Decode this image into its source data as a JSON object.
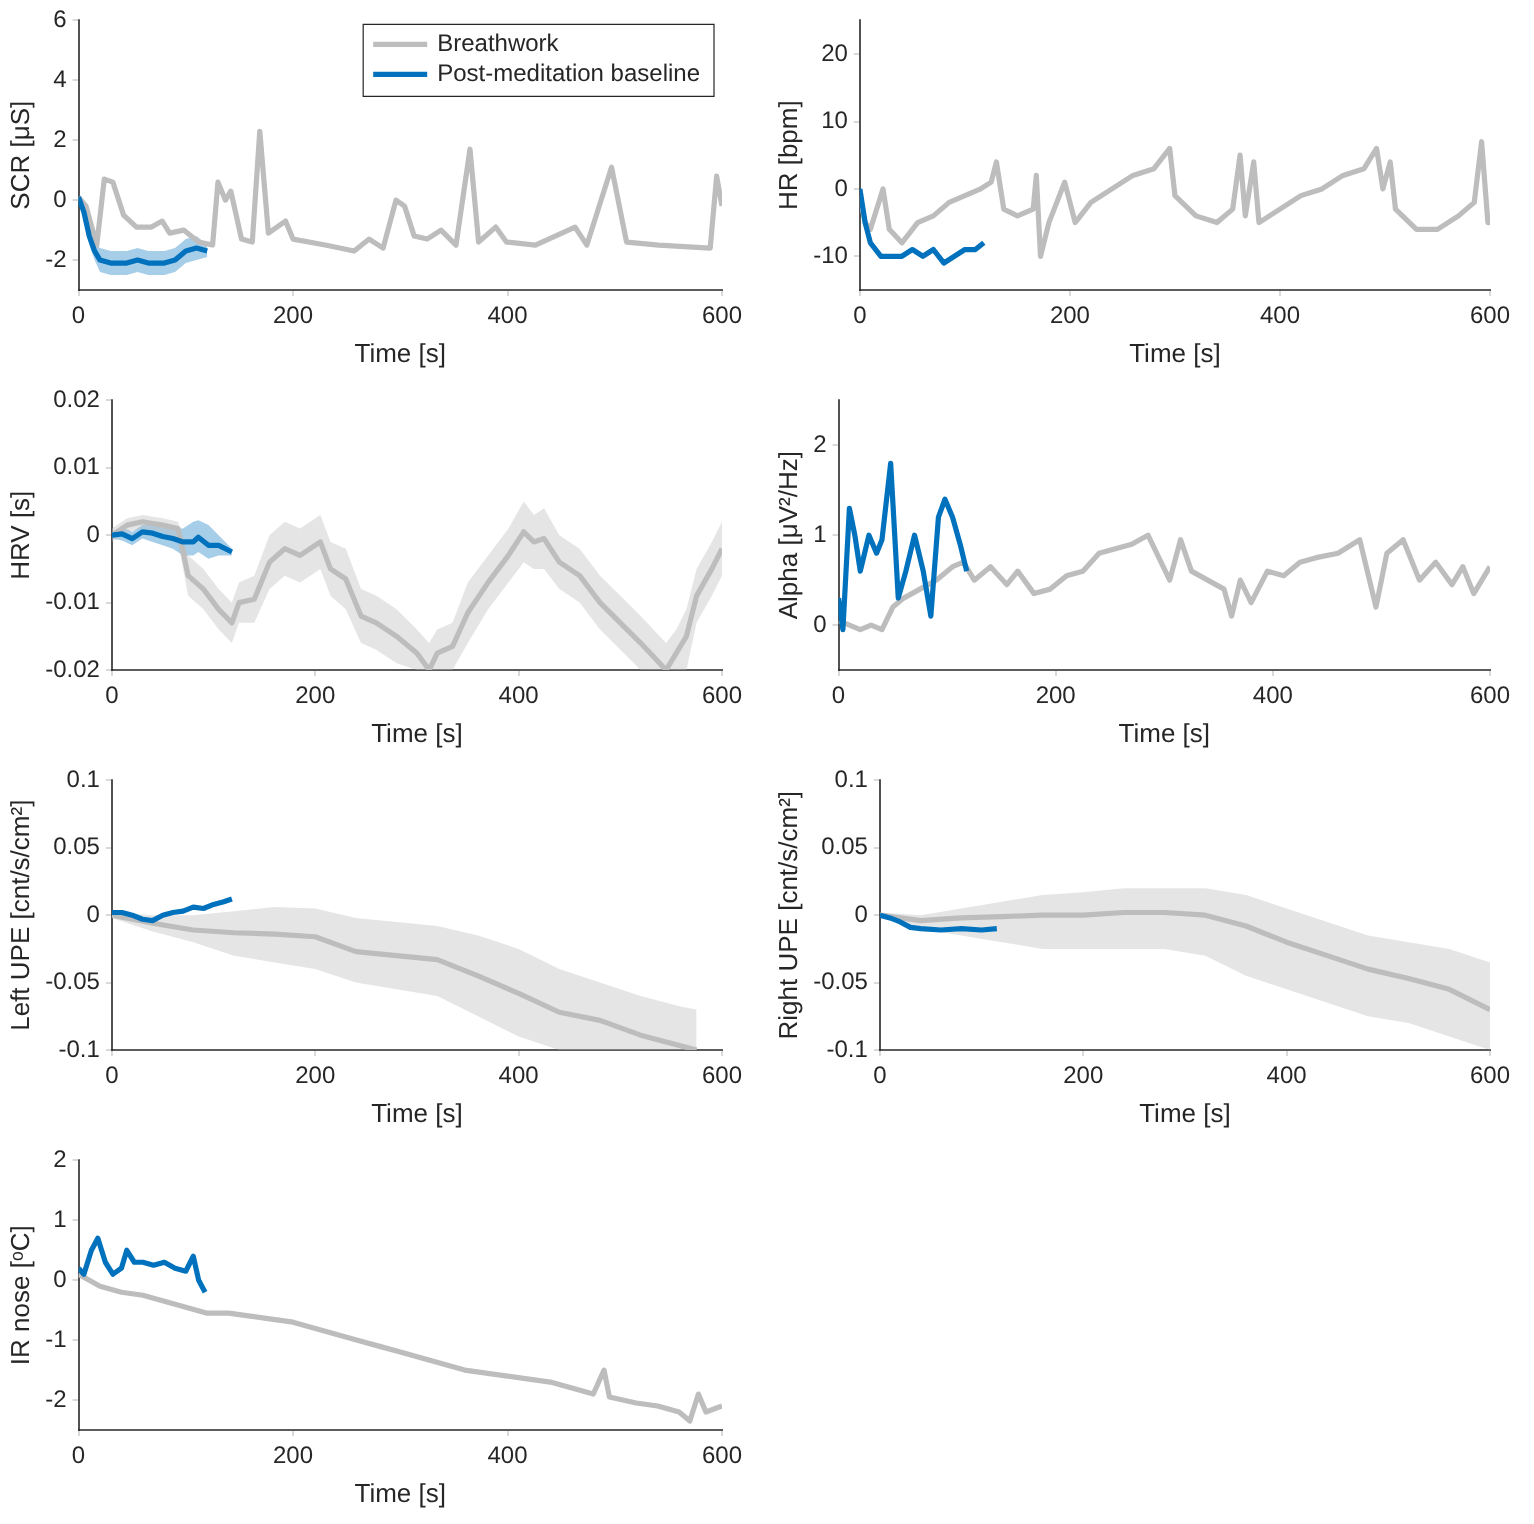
{
  "chart_data": [
    {
      "type": "line",
      "ylabel": "SCR [μS]",
      "xlabel": "Time [s]",
      "xlim": [
        0,
        600
      ],
      "xticks": [
        0,
        200,
        400,
        600
      ],
      "ylim": [
        -3,
        6
      ],
      "yticks": [
        -2,
        0,
        2,
        4,
        6
      ],
      "grid": false,
      "legend": "top right",
      "series": [
        {
          "name": "Breathwork",
          "color": "#bdbdbd",
          "x": [
            0,
            7,
            17,
            24,
            32,
            42,
            54,
            68,
            78,
            85,
            98,
            112,
            125,
            130,
            137,
            142,
            152,
            162,
            169,
            177,
            193,
            200,
            230,
            257,
            271,
            284,
            296,
            304,
            313,
            325,
            338,
            352,
            365,
            373,
            389,
            399,
            426,
            463,
            474,
            497,
            511,
            541,
            589,
            595,
            600
          ],
          "values": [
            0.1,
            -0.2,
            -1.5,
            0.7,
            0.6,
            -0.5,
            -0.9,
            -0.9,
            -0.7,
            -1.1,
            -1.0,
            -1.4,
            -1.5,
            0.6,
            0.0,
            0.3,
            -1.3,
            -1.4,
            2.3,
            -1.1,
            -0.7,
            -1.3,
            -1.5,
            -1.7,
            -1.3,
            -1.6,
            0.0,
            -0.2,
            -1.2,
            -1.3,
            -1.0,
            -1.5,
            1.7,
            -1.4,
            -0.9,
            -1.4,
            -1.5,
            -0.9,
            -1.5,
            1.1,
            -1.4,
            -1.5,
            -1.6,
            0.8,
            -0.2
          ]
        },
        {
          "name": "Post-meditation baseline",
          "color": "#0072bd",
          "x": [
            0,
            5,
            10,
            15,
            20,
            30,
            45,
            55,
            65,
            80,
            90,
            100,
            110,
            120
          ],
          "values": [
            0.1,
            -0.4,
            -1.2,
            -1.7,
            -2.0,
            -2.1,
            -2.1,
            -2.0,
            -2.1,
            -2.1,
            -2.0,
            -1.7,
            -1.6,
            -1.7
          ],
          "lower": [
            0.0,
            -0.6,
            -1.5,
            -2.0,
            -2.4,
            -2.5,
            -2.5,
            -2.4,
            -2.5,
            -2.5,
            -2.4,
            -2.1,
            -2.0,
            -1.9
          ],
          "upper": [
            0.2,
            -0.2,
            -0.9,
            -1.4,
            -1.6,
            -1.7,
            -1.7,
            -1.6,
            -1.7,
            -1.7,
            -1.6,
            -1.3,
            -1.2,
            -1.5
          ]
        }
      ]
    },
    {
      "type": "line",
      "ylabel": "HR [bpm]",
      "xlabel": "Time [s]",
      "xlim": [
        0,
        600
      ],
      "xticks": [
        0,
        200,
        400,
        600
      ],
      "ylim": [
        -15,
        25
      ],
      "yticks": [
        -10,
        0,
        10,
        20
      ],
      "grid": false,
      "series": [
        {
          "color": "#bdbdbd",
          "x": [
            0,
            5,
            10,
            22,
            28,
            40,
            55,
            70,
            85,
            100,
            115,
            125,
            130,
            137,
            150,
            165,
            168,
            172,
            180,
            195,
            205,
            220,
            240,
            260,
            280,
            295,
            300,
            320,
            340,
            355,
            362,
            367,
            375,
            380,
            400,
            420,
            440,
            460,
            480,
            492,
            498,
            505,
            510,
            530,
            550,
            570,
            585,
            592,
            598,
            600
          ],
          "values": [
            -1,
            -5,
            -6,
            0,
            -6,
            -8,
            -5,
            -4,
            -2,
            -1,
            0,
            1,
            4,
            -3,
            -4,
            -3,
            2,
            -10,
            -5,
            1,
            -5,
            -2,
            0,
            2,
            3,
            6,
            -1,
            -4,
            -5,
            -3,
            5,
            -4,
            4,
            -5,
            -3,
            -1,
            0,
            2,
            3,
            6,
            0,
            4,
            -3,
            -6,
            -6,
            -4,
            -2,
            7,
            -5,
            -5
          ]
        },
        {
          "color": "#0072bd",
          "x": [
            0,
            5,
            10,
            20,
            30,
            40,
            50,
            60,
            70,
            80,
            90,
            100,
            110,
            118
          ],
          "values": [
            0,
            -5,
            -8,
            -10,
            -10,
            -10,
            -9,
            -10,
            -9,
            -11,
            -10,
            -9,
            -9,
            -8
          ]
        }
      ]
    },
    {
      "type": "line",
      "ylabel": "HRV [s]",
      "xlabel": "Time [s]",
      "xlim": [
        0,
        600
      ],
      "xticks": [
        0,
        200,
        400,
        600
      ],
      "ylim": [
        -0.02,
        0.02
      ],
      "yticks": [
        -0.02,
        -0.01,
        0,
        0.01,
        0.02
      ],
      "grid": false,
      "series": [
        {
          "color": "#bdbdbd",
          "x": [
            0,
            15,
            30,
            50,
            65,
            75,
            90,
            105,
            118,
            125,
            140,
            155,
            170,
            185,
            205,
            215,
            230,
            245,
            260,
            280,
            300,
            312,
            320,
            335,
            350,
            370,
            390,
            405,
            415,
            425,
            440,
            460,
            480,
            500,
            520,
            545,
            555,
            565,
            575,
            590,
            600
          ],
          "values": [
            0,
            0.0015,
            0.002,
            0.0015,
            0.001,
            -0.006,
            -0.008,
            -0.011,
            -0.013,
            -0.01,
            -0.0095,
            -0.004,
            -0.002,
            -0.003,
            -0.001,
            -0.005,
            -0.0065,
            -0.012,
            -0.013,
            -0.015,
            -0.0175,
            -0.02,
            -0.0175,
            -0.0165,
            -0.0115,
            -0.007,
            -0.003,
            0.0005,
            -0.001,
            -0.0005,
            -0.004,
            -0.006,
            -0.01,
            -0.013,
            -0.016,
            -0.02,
            -0.0175,
            -0.015,
            -0.009,
            -0.005,
            -0.002
          ],
          "lower": [
            -0.001,
            0.0005,
            0.001,
            0.0005,
            -0.001,
            -0.009,
            -0.011,
            -0.014,
            -0.016,
            -0.013,
            -0.013,
            -0.008,
            -0.006,
            -0.007,
            -0.005,
            -0.009,
            -0.011,
            -0.016,
            -0.017,
            -0.019,
            -0.02,
            -0.02,
            -0.02,
            -0.02,
            -0.016,
            -0.011,
            -0.007,
            -0.004,
            -0.005,
            -0.005,
            -0.008,
            -0.01,
            -0.014,
            -0.017,
            -0.02,
            -0.02,
            -0.02,
            -0.02,
            -0.013,
            -0.009,
            -0.006
          ],
          "upper": [
            0.001,
            0.0025,
            0.003,
            0.0025,
            0.002,
            -0.003,
            -0.005,
            -0.008,
            -0.01,
            -0.007,
            -0.006,
            0.0,
            0.002,
            0.001,
            0.003,
            -0.001,
            -0.002,
            -0.008,
            -0.009,
            -0.011,
            -0.014,
            -0.016,
            -0.014,
            -0.013,
            -0.007,
            -0.003,
            0.001,
            0.005,
            0.003,
            0.004,
            0.0,
            -0.002,
            -0.006,
            -0.009,
            -0.012,
            -0.016,
            -0.014,
            -0.011,
            -0.005,
            -0.001,
            0.002
          ]
        },
        {
          "color": "#0072bd",
          "x": [
            0,
            10,
            20,
            30,
            40,
            50,
            60,
            70,
            80,
            85,
            95,
            105,
            118
          ],
          "values": [
            0,
            0.0002,
            -0.0005,
            0.0005,
            0.0003,
            -0.0002,
            -0.0005,
            -0.001,
            -0.001,
            -0.0003,
            -0.0015,
            -0.0015,
            -0.0025
          ],
          "lower": [
            -0.0005,
            -0.0008,
            -0.0015,
            -0.0005,
            -0.001,
            -0.0015,
            -0.002,
            -0.003,
            -0.003,
            -0.0025,
            -0.0035,
            -0.003,
            -0.003
          ],
          "upper": [
            0.0005,
            0.0012,
            0.0005,
            0.0015,
            0.0016,
            0.0011,
            0.001,
            0.001,
            0.002,
            0.0022,
            0.0015,
            0.0,
            -0.002
          ]
        }
      ]
    },
    {
      "type": "line",
      "ylabel": "Alpha [μV²/Hz]",
      "xlabel": "Time [s]",
      "xlim": [
        0,
        600
      ],
      "xticks": [
        0,
        200,
        400,
        600
      ],
      "ylim": [
        -0.5,
        2.5
      ],
      "yticks": [
        0,
        1,
        2
      ],
      "grid": false,
      "series": [
        {
          "color": "#bdbdbd",
          "x": [
            0,
            10,
            20,
            30,
            40,
            50,
            60,
            75,
            90,
            105,
            115,
            125,
            140,
            155,
            165,
            180,
            195,
            210,
            225,
            240,
            255,
            270,
            285,
            295,
            305,
            315,
            325,
            340,
            355,
            362,
            370,
            380,
            395,
            410,
            425,
            440,
            460,
            480,
            495,
            505,
            520,
            535,
            550,
            565,
            575,
            585,
            600
          ],
          "values": [
            0.05,
            0.0,
            -0.05,
            0.0,
            -0.05,
            0.2,
            0.3,
            0.4,
            0.5,
            0.65,
            0.7,
            0.5,
            0.65,
            0.45,
            0.6,
            0.35,
            0.4,
            0.55,
            0.6,
            0.8,
            0.85,
            0.9,
            1.0,
            0.75,
            0.5,
            0.95,
            0.6,
            0.5,
            0.4,
            0.1,
            0.5,
            0.25,
            0.6,
            0.55,
            0.7,
            0.75,
            0.8,
            0.95,
            0.2,
            0.8,
            0.95,
            0.5,
            0.7,
            0.45,
            0.65,
            0.35,
            0.65
          ]
        },
        {
          "color": "#0072bd",
          "x": [
            0,
            4,
            10,
            15,
            20,
            28,
            35,
            40,
            48,
            55,
            62,
            70,
            78,
            85,
            92,
            98,
            105,
            112,
            118
          ],
          "values": [
            0.3,
            -0.05,
            1.3,
            1.0,
            0.6,
            1.0,
            0.8,
            0.95,
            1.8,
            0.3,
            0.6,
            1.0,
            0.6,
            0.1,
            1.2,
            1.4,
            1.2,
            0.9,
            0.6
          ]
        }
      ]
    },
    {
      "type": "line",
      "ylabel": "Left UPE [cnt/s/cm²]",
      "xlabel": "Time [s]",
      "xlim": [
        0,
        600
      ],
      "xticks": [
        0,
        200,
        400,
        600
      ],
      "ylim": [
        -0.1,
        0.1
      ],
      "yticks": [
        -0.1,
        -0.05,
        0,
        0.05,
        0.1
      ],
      "grid": false,
      "series": [
        {
          "color": "#bdbdbd",
          "x": [
            0,
            40,
            80,
            120,
            160,
            200,
            240,
            280,
            320,
            360,
            400,
            440,
            480,
            520,
            560,
            575
          ],
          "values": [
            0,
            -0.006,
            -0.011,
            -0.013,
            -0.014,
            -0.016,
            -0.027,
            -0.03,
            -0.033,
            -0.045,
            -0.058,
            -0.072,
            -0.078,
            -0.089,
            -0.097,
            -0.1
          ],
          "lower": [
            -0.002,
            -0.012,
            -0.02,
            -0.03,
            -0.035,
            -0.04,
            -0.05,
            -0.055,
            -0.06,
            -0.075,
            -0.09,
            -0.1,
            -0.1,
            -0.1,
            -0.1,
            -0.1
          ],
          "upper": [
            0.002,
            0.0,
            0.0,
            0.003,
            0.006,
            0.005,
            -0.002,
            -0.005,
            -0.008,
            -0.015,
            -0.025,
            -0.04,
            -0.05,
            -0.06,
            -0.068,
            -0.07
          ]
        },
        {
          "color": "#0072bd",
          "x": [
            0,
            10,
            20,
            30,
            40,
            50,
            60,
            70,
            80,
            90,
            100,
            110,
            118
          ],
          "values": [
            0.002,
            0.002,
            0.0,
            -0.003,
            -0.004,
            0.0,
            0.002,
            0.003,
            0.006,
            0.005,
            0.008,
            0.01,
            0.012
          ]
        }
      ]
    },
    {
      "type": "line",
      "ylabel": "Right UPE [cnt/s/cm²]",
      "xlabel": "Time [s]",
      "xlim": [
        0,
        600
      ],
      "xticks": [
        0,
        200,
        400,
        600
      ],
      "ylim": [
        -0.1,
        0.1
      ],
      "yticks": [
        -0.1,
        -0.05,
        0,
        0.05,
        0.1
      ],
      "grid": false,
      "series": [
        {
          "color": "#bdbdbd",
          "x": [
            0,
            40,
            80,
            120,
            160,
            200,
            240,
            280,
            320,
            360,
            400,
            440,
            480,
            520,
            560,
            600
          ],
          "values": [
            0,
            -0.004,
            -0.002,
            -0.001,
            0.0,
            0.0,
            0.002,
            0.002,
            0.0,
            -0.008,
            -0.02,
            -0.03,
            -0.04,
            -0.047,
            -0.055,
            -0.07
          ],
          "lower": [
            -0.002,
            -0.01,
            -0.015,
            -0.02,
            -0.025,
            -0.025,
            -0.025,
            -0.025,
            -0.03,
            -0.045,
            -0.055,
            -0.065,
            -0.075,
            -0.08,
            -0.09,
            -0.1
          ],
          "upper": [
            0.002,
            0.0,
            0.005,
            0.01,
            0.015,
            0.017,
            0.02,
            0.02,
            0.02,
            0.015,
            0.005,
            -0.005,
            -0.015,
            -0.02,
            -0.025,
            -0.035
          ]
        },
        {
          "color": "#0072bd",
          "x": [
            0,
            10,
            20,
            30,
            40,
            60,
            80,
            100,
            115
          ],
          "values": [
            0,
            -0.002,
            -0.005,
            -0.009,
            -0.01,
            -0.011,
            -0.01,
            -0.011,
            -0.01
          ]
        }
      ]
    },
    {
      "type": "line",
      "ylabel": "IR nose [ᵒC]",
      "xlabel": "Time [s]",
      "xlim": [
        0,
        600
      ],
      "xticks": [
        0,
        200,
        400,
        600
      ],
      "ylim": [
        -2.5,
        2
      ],
      "yticks": [
        -2,
        -1,
        0,
        1,
        2
      ],
      "grid": false,
      "series": [
        {
          "color": "#bdbdbd",
          "x": [
            0,
            10,
            20,
            40,
            60,
            80,
            100,
            120,
            140,
            160,
            180,
            200,
            220,
            240,
            260,
            280,
            300,
            320,
            340,
            360,
            380,
            400,
            420,
            440,
            460,
            480,
            490,
            495,
            520,
            540,
            560,
            570,
            578,
            585,
            600
          ],
          "values": [
            0.1,
            0.0,
            -0.1,
            -0.2,
            -0.25,
            -0.35,
            -0.45,
            -0.55,
            -0.55,
            -0.6,
            -0.65,
            -0.7,
            -0.8,
            -0.9,
            -1.0,
            -1.1,
            -1.2,
            -1.3,
            -1.4,
            -1.5,
            -1.55,
            -1.6,
            -1.65,
            -1.7,
            -1.8,
            -1.9,
            -1.5,
            -1.95,
            -2.05,
            -2.1,
            -2.2,
            -2.35,
            -1.9,
            -2.2,
            -2.1
          ]
        },
        {
          "color": "#0072bd",
          "x": [
            0,
            5,
            12,
            18,
            25,
            32,
            40,
            45,
            52,
            60,
            70,
            80,
            90,
            100,
            107,
            112,
            118
          ],
          "values": [
            0.2,
            0.1,
            0.5,
            0.7,
            0.3,
            0.1,
            0.2,
            0.5,
            0.3,
            0.3,
            0.25,
            0.3,
            0.2,
            0.15,
            0.4,
            0.0,
            -0.2
          ]
        }
      ]
    }
  ]
}
